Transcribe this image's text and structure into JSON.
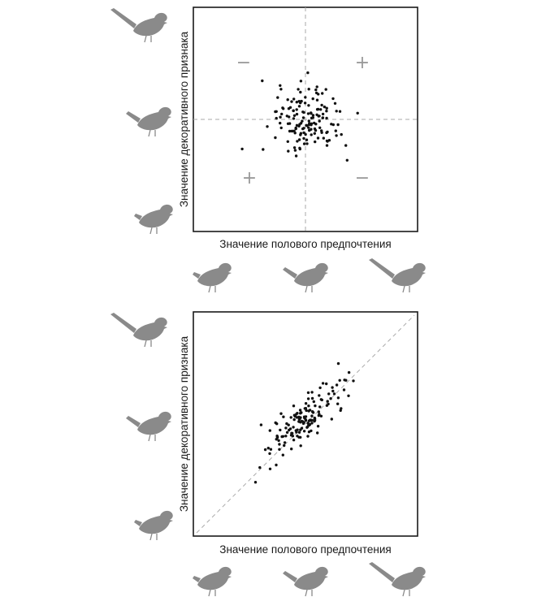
{
  "chart_data": [
    {
      "type": "scatter",
      "xlabel": "Значение полового предпочтения",
      "ylabel": "Значение декоративного признака",
      "quadrant_signs": [
        {
          "quadrant": "top-left",
          "sign": "−"
        },
        {
          "quadrant": "top-right",
          "sign": "+"
        },
        {
          "quadrant": "bottom-left",
          "sign": "+"
        },
        {
          "quadrant": "bottom-right",
          "sign": "−"
        }
      ],
      "xlim": [
        -1,
        1
      ],
      "ylim": [
        -1,
        1
      ],
      "reference_lines": [
        "x=0",
        "y=0"
      ],
      "correlation": "none",
      "tail_length_scale": [
        "long",
        "medium",
        "short"
      ]
    },
    {
      "type": "scatter",
      "xlabel": "Значение полового предпочтения",
      "ylabel": "Значение декоративного признака",
      "xlim": [
        -1,
        1
      ],
      "ylim": [
        -1,
        1
      ],
      "reference_lines": [
        "y=x"
      ],
      "correlation": "positive",
      "tail_length_scale": [
        "long",
        "medium",
        "short"
      ]
    }
  ],
  "colors": {
    "frame": "#1a1a1a",
    "dots": "#111111",
    "guides": "#aaaaaa",
    "birds": "#8a8a8a"
  },
  "icons": [
    "bird-icon"
  ]
}
